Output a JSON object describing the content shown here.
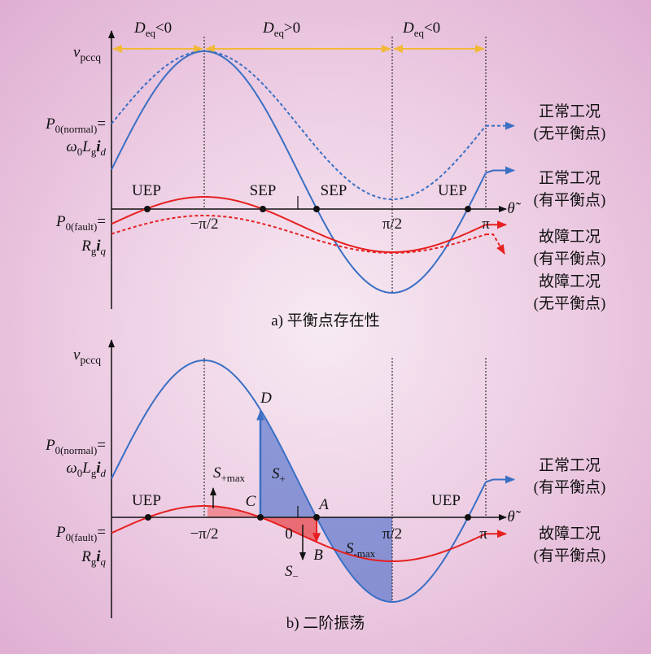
{
  "panel_a": {
    "caption": "a) 平衡点存在性",
    "v_label": [
      "v",
      "pccq"
    ],
    "deq": [
      [
        "D",
        "eq",
        "<0"
      ],
      [
        "D",
        "eq",
        ">0"
      ],
      [
        "D",
        "eq",
        "<0"
      ]
    ],
    "p_normal": [
      "P",
      "0(normal)",
      "=",
      "ω",
      "0",
      "L",
      "g",
      "i",
      "d"
    ],
    "p_fault": [
      "P",
      "0(fault)",
      "=",
      "R",
      "g",
      "i",
      "q"
    ],
    "theta": "θ̃",
    "ticks": [
      "−π/2",
      "π/2",
      "π"
    ],
    "points": [
      "UEP",
      "SEP",
      "SEP",
      "UEP"
    ],
    "legend": [
      [
        "正常工况",
        "(无平衡点)"
      ],
      [
        "正常工况",
        "(有平衡点)"
      ],
      [
        "故障工况",
        "(有平衡点)"
      ],
      [
        "故障工况",
        "(无平衡点)"
      ]
    ]
  },
  "panel_b": {
    "caption": "b) 二阶振荡",
    "v_label": [
      "v",
      "pccq"
    ],
    "p_normal": [
      "P",
      "0(normal)",
      "=",
      "ω",
      "0",
      "L",
      "g",
      "i",
      "d"
    ],
    "p_fault": [
      "P",
      "0(fault)",
      "=",
      "R",
      "g",
      "i",
      "q"
    ],
    "theta": "θ̃",
    "ticks": [
      "−π/2",
      "0",
      "π/2",
      "π"
    ],
    "points": [
      "UEP",
      "UEP"
    ],
    "letters": [
      "C",
      "D",
      "A",
      "B"
    ],
    "s_plus_max": [
      "S",
      "+max"
    ],
    "s_plus": [
      "S",
      "+"
    ],
    "s_minus": [
      "S",
      "−"
    ],
    "s_minus_max": [
      "S",
      "-max"
    ],
    "legend": [
      [
        "正常工况",
        "(有平衡点)"
      ],
      [
        "故障工况",
        "(有平衡点)"
      ]
    ]
  }
}
